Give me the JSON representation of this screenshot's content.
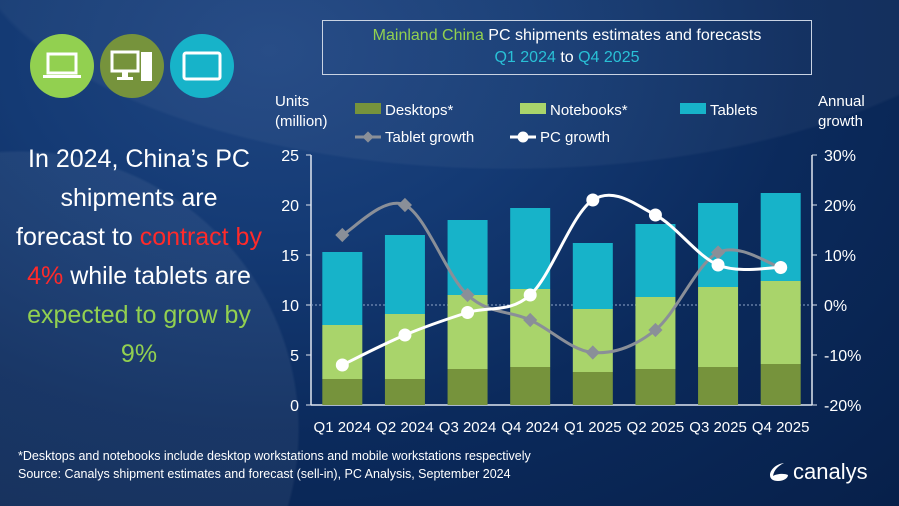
{
  "title": {
    "part1": "Mainland China",
    "part2": " PC shipments estimates and forecasts",
    "part3": "Q1 2024",
    "part4": " to ",
    "part5": "Q4 2025"
  },
  "icons": [
    {
      "name": "laptop-icon",
      "color": "#92d050"
    },
    {
      "name": "desktop-icon",
      "color": "#76933c"
    },
    {
      "name": "tablet-icon",
      "color": "#17b3c9"
    }
  ],
  "headline": {
    "t1": "In 2024, China’s PC shipments are forecast to ",
    "t2": "contract by 4%",
    "t3": " while tablets are ",
    "t4": "expected to grow by 9%"
  },
  "footnote": "*Desktops and notebooks include desktop workstations and mobile workstations respectively",
  "source": "Source: Canalys shipment estimates and forecast (sell-in), PC Analysis, September 2024",
  "logo": "canalys",
  "colors": {
    "desktops": "#76933c",
    "notebooks": "#a9d46b",
    "tablets": "#17b3c9",
    "tablet_growth": "#8a8f98",
    "pc_growth": "#ffffff",
    "accent_green": "#92d050",
    "accent_red": "#ff2a2a"
  },
  "chart_data": {
    "type": "bar",
    "stacked": true,
    "ylabel": "Units (million)",
    "y2label": "Annual growth",
    "ylim": [
      0,
      25
    ],
    "yticks": [
      "0",
      "5",
      "10",
      "15",
      "20",
      "25"
    ],
    "y2lim": [
      -20,
      30
    ],
    "y2ticks": [
      "-20%",
      "-10%",
      "0%",
      "10%",
      "20%",
      "30%"
    ],
    "legend_position": "top",
    "categories": [
      "Q1 2024",
      "Q2 2024",
      "Q3 2024",
      "Q4 2024",
      "Q1 2025",
      "Q2 2025",
      "Q3 2025",
      "Q4 2025"
    ],
    "series": [
      {
        "name": "Desktops*",
        "type": "bar",
        "values": [
          2.6,
          2.6,
          3.6,
          3.8,
          3.3,
          3.6,
          3.8,
          4.1
        ]
      },
      {
        "name": "Notebooks*",
        "type": "bar",
        "values": [
          5.4,
          6.5,
          7.4,
          7.8,
          6.3,
          7.2,
          8.0,
          8.3
        ]
      },
      {
        "name": "Tablets",
        "type": "bar",
        "values": [
          7.3,
          7.9,
          7.5,
          8.1,
          6.6,
          7.3,
          8.4,
          8.8
        ]
      },
      {
        "name": "Tablet growth",
        "type": "line",
        "axis": "right",
        "unit": "%",
        "values": [
          14,
          20,
          2,
          -3,
          -9.5,
          -5,
          10.5,
          7.5
        ]
      },
      {
        "name": "PC growth",
        "type": "line",
        "axis": "right",
        "unit": "%",
        "values": [
          -12,
          -6,
          -1.5,
          2,
          21,
          18,
          8,
          7.5
        ]
      }
    ]
  }
}
